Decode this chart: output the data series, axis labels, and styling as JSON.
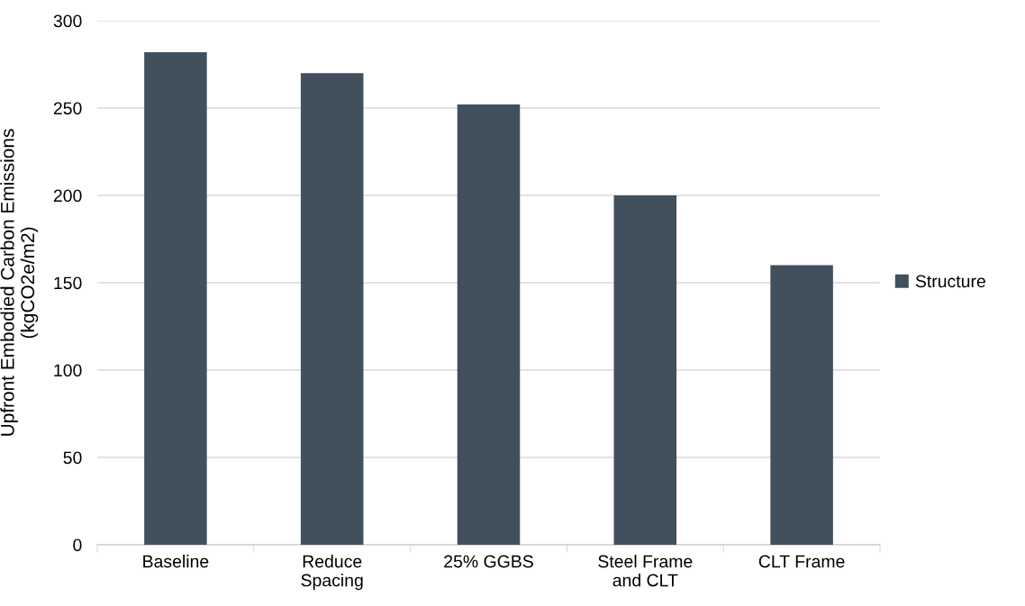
{
  "chart_data": {
    "type": "bar",
    "categories": [
      "Baseline",
      "Reduce\nSpacing",
      "25% GGBS",
      "Steel Frame\nand CLT",
      "CLT Frame"
    ],
    "series": [
      {
        "name": "Structure",
        "color": "#424f5c",
        "values": [
          282,
          270,
          252,
          200,
          160
        ]
      }
    ],
    "ylabel": "Upfront Embodied Carbon Emissions\n(kgCO2e/m2)",
    "ylim": [
      0,
      300
    ],
    "yticks": [
      0,
      50,
      100,
      150,
      200,
      250,
      300
    ],
    "grid": "y",
    "legend": "right"
  }
}
